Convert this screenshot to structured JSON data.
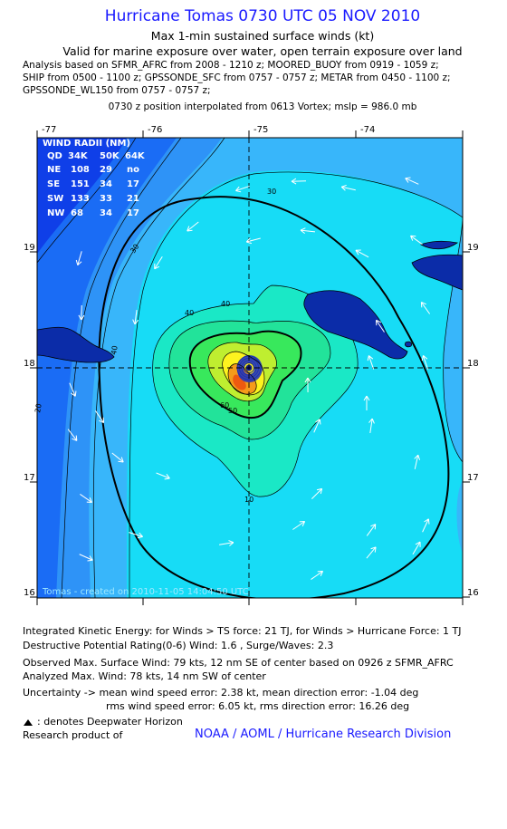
{
  "header": {
    "title": "Hurricane Tomas 0730 UTC 05 NOV 2010",
    "subtitle1": "Max 1-min sustained surface winds (kt)",
    "subtitle2": "Valid for marine exposure over water, open terrain exposure over land",
    "sources": [
      "Analysis based on SFMR_AFRC from 2008 - 1210 z; MOORED_BUOY from 0919 - 1059 z;",
      "SHIP from 0500 - 1100 z; GPSSONDE_SFC from 0757 - 0757 z; METAR from 0450 - 1100 z;",
      "GPSSONDE_WL150 from 0757 - 0757 z;"
    ],
    "position_note": "0730 z position interpolated from 0613 Vortex; mslp = 986.0 mb"
  },
  "map": {
    "lon_labels": [
      "-77",
      "-76",
      "-75",
      "-74"
    ],
    "lat_labels": [
      "19",
      "18",
      "17",
      "16"
    ],
    "contour_labels": [
      "30",
      "40",
      "50",
      "60",
      "10",
      "20",
      "40",
      "30",
      "40"
    ],
    "credit": "Tomas  -  created on 2010-11-05  14:04:50 UTC",
    "colors": {
      "deep_blue": "#0f3fe8",
      "blue": "#1a6cf5",
      "med_blue": "#2e93f7",
      "light_blue": "#38b6fa",
      "cyan": "#17dcf6",
      "aqua": "#1ae8c6",
      "teal_green": "#22e39a",
      "green": "#38e85c",
      "lime": "#bfee30",
      "yellow": "#fdf31f",
      "orange": "#f59b1a",
      "orange_red": "#ee5a10"
    }
  },
  "wind_radii": {
    "title": "WIND RADII (NM)",
    "header": [
      "QD",
      "34K",
      "50K",
      "64K"
    ],
    "rows": [
      [
        "NE",
        "108",
        "29",
        "no"
      ],
      [
        "SE",
        "151",
        "34",
        "17"
      ],
      [
        "SW",
        "133",
        "33",
        "21"
      ],
      [
        "NW",
        "68",
        "34",
        "17"
      ]
    ]
  },
  "footer": {
    "line1": "Integrated Kinetic Energy:  for Winds > TS force: 21 TJ,  for Winds > Hurricane Force: 1 TJ",
    "line2": "Destructive Potential Rating(0-6)   Wind: 1.6 , Surge/Waves: 2.3",
    "line3": "Observed Max. Surface Wind: 79 kts, 12 nm SE of center based on 0926 z SFMR_AFRC",
    "line4": "Analyzed Max. Wind: 78 kts, 14 nm SW of center",
    "line5": "Uncertainty -> mean wind speed error: 2.38 kt,   mean direction error:  -1.04 deg",
    "line6": "rms wind speed error: 6.05 kt,   rms direction error: 16.26 deg",
    "line7": ": denotes Deepwater Horizon",
    "line8": "Research product of",
    "noaa": "NOAA / AOML / Hurricane Research Division"
  }
}
